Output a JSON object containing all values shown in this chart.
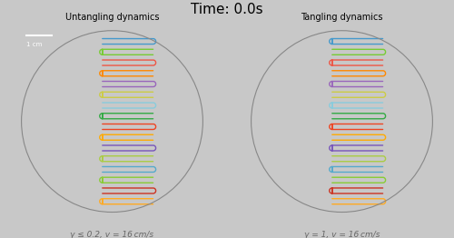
{
  "title": "Time: 0.0s",
  "title_fontsize": 11,
  "left_label": "Untangling dynamics",
  "right_label": "Tangling dynamics",
  "left_caption": "γ ≤ 0.2, v = 16 cm/s",
  "right_caption": "γ = 1, v = 16 cm/s",
  "fig_bg": "#c8c8c8",
  "panel_bg": "#a0a0a0",
  "circle_color": "#888888",
  "worm_colors": [
    "#4499cc",
    "#77cc33",
    "#ee5544",
    "#ff8800",
    "#9966bb",
    "#cccc44",
    "#88ccdd",
    "#33aa44",
    "#ee4422",
    "#ffaa00",
    "#7755bb",
    "#aacc44",
    "#55aacc",
    "#88cc33",
    "#cc3322",
    "#ffaa22"
  ],
  "n_worms": 16,
  "scale_bar_text": "1 cm",
  "left_bend": "left",
  "right_bend": "right"
}
